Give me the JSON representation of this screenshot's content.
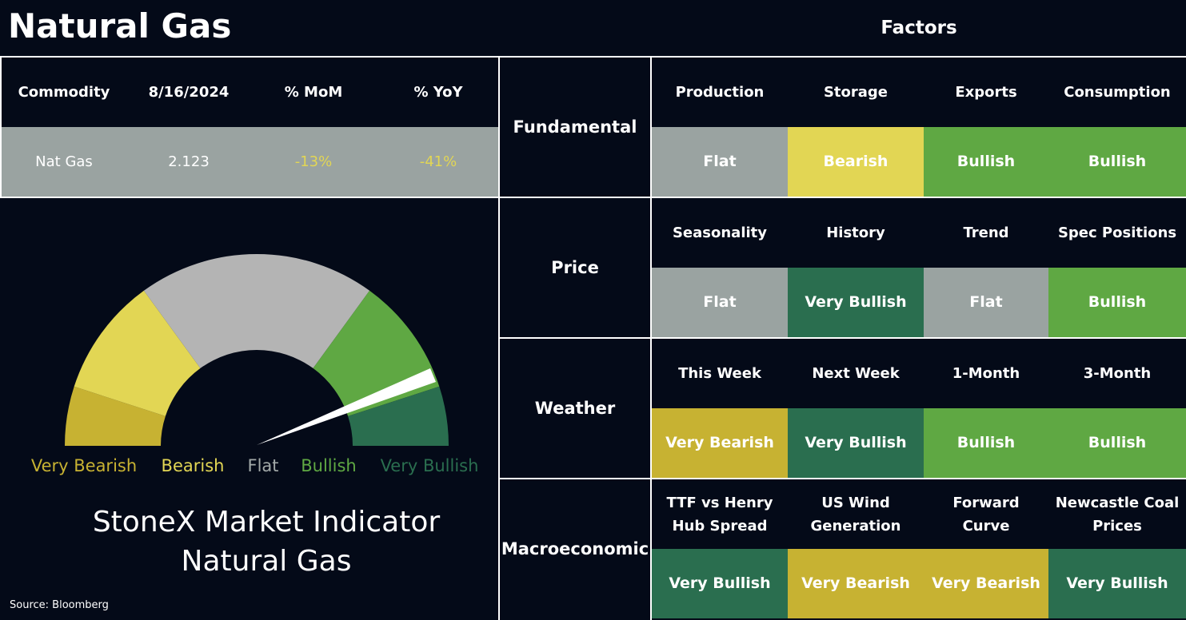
{
  "header": {
    "title": "Natural Gas",
    "factors_title": "Factors"
  },
  "commodity_table": {
    "columns": [
      "Commodity",
      "8/16/2024",
      "% MoM",
      "% YoY"
    ],
    "row": [
      "Nat Gas",
      "2.123",
      "-13%",
      "-41%"
    ],
    "row_colors": [
      "#ffffff",
      "#ffffff",
      "#e2d654",
      "#e2d654"
    ]
  },
  "gauge": {
    "labels": [
      {
        "text": "Very Bearish",
        "color": "#c7b232"
      },
      {
        "text": "Bearish",
        "color": "#e2d654"
      },
      {
        "text": "Flat",
        "color": "#a3aaa9"
      },
      {
        "text": "Bullish",
        "color": "#5fa843"
      },
      {
        "text": "Very Bullish",
        "color": "#2a6e4f"
      }
    ],
    "title": [
      "StoneX Market Indicator",
      "Natural Gas"
    ]
  },
  "source": "Source: Bloomberg",
  "factors": [
    {
      "group": "Fundamental",
      "items": [
        {
          "name": "Production",
          "signal": "Flat",
          "color": "#9aa3a1"
        },
        {
          "name": "Storage",
          "signal": "Bearish",
          "color": "#e2d654"
        },
        {
          "name": "Exports",
          "signal": "Bullish",
          "color": "#5fa843"
        },
        {
          "name": "Consumption",
          "signal": "Bullish",
          "color": "#5fa843"
        }
      ]
    },
    {
      "group": "Price",
      "items": [
        {
          "name": "Seasonality",
          "signal": "Flat",
          "color": "#9aa3a1"
        },
        {
          "name": "History",
          "signal": "Very Bullish",
          "color": "#2a6e4f"
        },
        {
          "name": "Trend",
          "signal": "Flat",
          "color": "#9aa3a1"
        },
        {
          "name": "Spec Positions",
          "signal": "Bullish",
          "color": "#5fa843"
        }
      ]
    },
    {
      "group": "Weather",
      "items": [
        {
          "name": "This Week",
          "signal": "Very Bearish",
          "color": "#c7b232"
        },
        {
          "name": "Next Week",
          "signal": "Very Bullish",
          "color": "#2a6e4f"
        },
        {
          "name": "1-Month",
          "signal": "Bullish",
          "color": "#5fa843"
        },
        {
          "name": "3-Month",
          "signal": "Bullish",
          "color": "#5fa843"
        }
      ]
    },
    {
      "group": "Macroeconomic",
      "items": [
        {
          "name": "TTF vs Henry\nHub Spread",
          "signal": "Very Bullish",
          "color": "#2a6e4f"
        },
        {
          "name": "US Wind\nGeneration",
          "signal": "Very Bearish",
          "color": "#c7b232"
        },
        {
          "name": "Forward\nCurve",
          "signal": "Very Bearish",
          "color": "#c7b232"
        },
        {
          "name": "Newcastle Coal\nPrices",
          "signal": "Very Bullish",
          "color": "#2a6e4f"
        }
      ]
    }
  ]
}
